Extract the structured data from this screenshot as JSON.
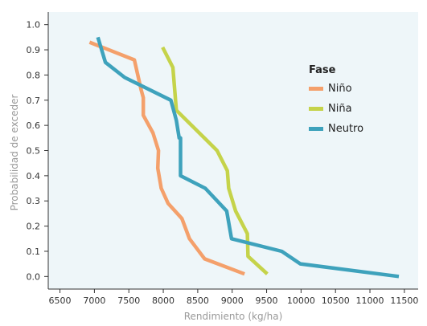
{
  "chart_data": {
    "type": "line",
    "xlabel": "Rendimiento (kg/ha)",
    "ylabel": "Probabilidad de exceder",
    "xlim": [
      6500,
      11500
    ],
    "ylim": [
      0,
      1.0
    ],
    "x_ticks": [
      6500,
      7000,
      7500,
      8000,
      8500,
      9000,
      9500,
      10000,
      10500,
      11000,
      11500
    ],
    "y_ticks": [
      0.0,
      0.1,
      0.2,
      0.3,
      0.4,
      0.5,
      0.6,
      0.7,
      0.8,
      0.9,
      1.0
    ],
    "x_tick_labels": [
      "6500",
      "7000",
      "7500",
      "8000",
      "8500",
      "9000",
      "9500",
      "10000",
      "10500",
      "11000",
      "11500"
    ],
    "y_tick_labels": [
      "0.0",
      "0.1",
      "0.2",
      "0.3",
      "0.4",
      "0.5",
      "0.6",
      "0.7",
      "0.8",
      "0.9",
      "1.0"
    ],
    "grid": false,
    "background": "#eef6f9",
    "legend": {
      "title": "Fase",
      "position": "right"
    },
    "series": [
      {
        "name": "Niño",
        "color": "#f4a06b",
        "points": [
          [
            6930,
            0.93
          ],
          [
            7580,
            0.86
          ],
          [
            7680,
            0.74
          ],
          [
            7710,
            0.71
          ],
          [
            7710,
            0.64
          ],
          [
            7850,
            0.57
          ],
          [
            7930,
            0.5
          ],
          [
            7920,
            0.43
          ],
          [
            7970,
            0.35
          ],
          [
            8070,
            0.29
          ],
          [
            8270,
            0.23
          ],
          [
            8380,
            0.15
          ],
          [
            8600,
            0.07
          ],
          [
            9180,
            0.01
          ]
        ]
      },
      {
        "name": "Niña",
        "color": "#c5d34a",
        "points": [
          [
            7990,
            0.91
          ],
          [
            8140,
            0.83
          ],
          [
            8190,
            0.66
          ],
          [
            8780,
            0.5
          ],
          [
            8930,
            0.42
          ],
          [
            8950,
            0.35
          ],
          [
            9050,
            0.26
          ],
          [
            9220,
            0.17
          ],
          [
            9230,
            0.08
          ],
          [
            9510,
            0.01
          ]
        ]
      },
      {
        "name": "Neutro",
        "color": "#3ea2bc",
        "points": [
          [
            7050,
            0.95
          ],
          [
            7160,
            0.85
          ],
          [
            7440,
            0.79
          ],
          [
            8110,
            0.7
          ],
          [
            8190,
            0.62
          ],
          [
            8230,
            0.55
          ],
          [
            8250,
            0.55
          ],
          [
            8250,
            0.4
          ],
          [
            8610,
            0.35
          ],
          [
            8920,
            0.26
          ],
          [
            8990,
            0.15
          ],
          [
            9720,
            0.1
          ],
          [
            9990,
            0.05
          ],
          [
            11420,
            0.0
          ]
        ]
      }
    ]
  }
}
